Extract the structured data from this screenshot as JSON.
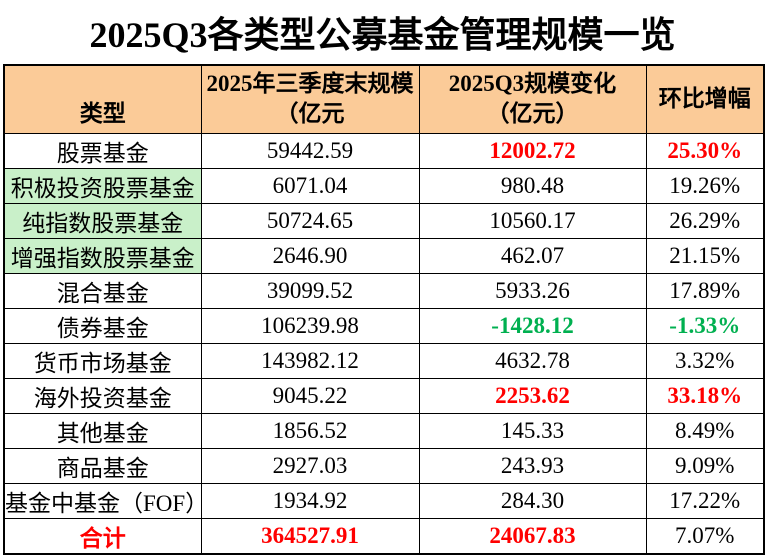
{
  "title": "2025Q3各类型公募基金管理规模一览",
  "colors": {
    "header_bg": "#FBCB98",
    "highlight_row_bg": "#C9F0C9",
    "emphasis_red": "#FF0000",
    "emphasis_green": "#00B050",
    "border": "#000000"
  },
  "table": {
    "headers": [
      {
        "label": "类型"
      },
      {
        "label": "2025年三季度末规模\n（亿元"
      },
      {
        "label": "2025Q3规模变化\n（亿元）"
      },
      {
        "label": "环比增幅"
      }
    ],
    "rows": [
      {
        "type": "股票基金",
        "scale": "59442.59",
        "change": "12002.72",
        "growth": "25.30%",
        "change_color": "red",
        "growth_color": "red"
      },
      {
        "type": "积极投资股票基金",
        "scale": "6071.04",
        "change": "980.48",
        "growth": "19.26%",
        "type_bg": "green"
      },
      {
        "type": "纯指数股票基金",
        "scale": "50724.65",
        "change": "10560.17",
        "growth": "26.29%",
        "type_bg": "green"
      },
      {
        "type": "增强指数股票基金",
        "scale": "2646.90",
        "change": "462.07",
        "growth": "21.15%",
        "type_bg": "green"
      },
      {
        "type": "混合基金",
        "scale": "39099.52",
        "change": "5933.26",
        "growth": "17.89%"
      },
      {
        "type": "债券基金",
        "scale": "106239.98",
        "change": "-1428.12",
        "growth": "-1.33%",
        "change_color": "green",
        "growth_color": "green"
      },
      {
        "type": "货币市场基金",
        "scale": "143982.12",
        "change": "4632.78",
        "growth": "3.32%"
      },
      {
        "type": "海外投资基金",
        "scale": "9045.22",
        "change": "2253.62",
        "growth": "33.18%",
        "change_color": "red",
        "growth_color": "red"
      },
      {
        "type": "其他基金",
        "scale": "1856.52",
        "change": "145.33",
        "growth": "8.49%"
      },
      {
        "type": "商品基金",
        "scale": "2927.03",
        "change": "243.93",
        "growth": "9.09%"
      },
      {
        "type": "基金中基金（FOF）",
        "scale": "1934.92",
        "change": "284.30",
        "growth": "17.22%"
      },
      {
        "type": "合计",
        "scale": "364527.91",
        "change": "24067.83",
        "growth": "7.07%",
        "type_color": "red",
        "scale_color": "red",
        "change_color": "red"
      }
    ]
  },
  "chart_data": {
    "type": "table",
    "title": "2025Q3各类型公募基金管理规模一览",
    "columns": [
      "类型",
      "2025年三季度末规模（亿元",
      "2025Q3规模变化（亿元）",
      "环比增幅"
    ],
    "rows": [
      [
        "股票基金",
        59442.59,
        12002.72,
        "25.30%"
      ],
      [
        "积极投资股票基金",
        6071.04,
        980.48,
        "19.26%"
      ],
      [
        "纯指数股票基金",
        50724.65,
        10560.17,
        "26.29%"
      ],
      [
        "增强指数股票基金",
        2646.9,
        462.07,
        "21.15%"
      ],
      [
        "混合基金",
        39099.52,
        5933.26,
        "17.89%"
      ],
      [
        "债券基金",
        106239.98,
        -1428.12,
        "-1.33%"
      ],
      [
        "货币市场基金",
        143982.12,
        4632.78,
        "3.32%"
      ],
      [
        "海外投资基金",
        9045.22,
        2253.62,
        "33.18%"
      ],
      [
        "其他基金",
        1856.52,
        145.33,
        "8.49%"
      ],
      [
        "商品基金",
        2927.03,
        243.93,
        "9.09%"
      ],
      [
        "基金中基金（FOF）",
        1934.92,
        284.3,
        "17.22%"
      ],
      [
        "合计",
        364527.91,
        24067.83,
        "7.07%"
      ]
    ],
    "notes": "Rows 积极投资股票基金/纯指数股票基金/增强指数股票基金 have light-green type cells; red = emphasized increases and totals; green = decreases."
  }
}
